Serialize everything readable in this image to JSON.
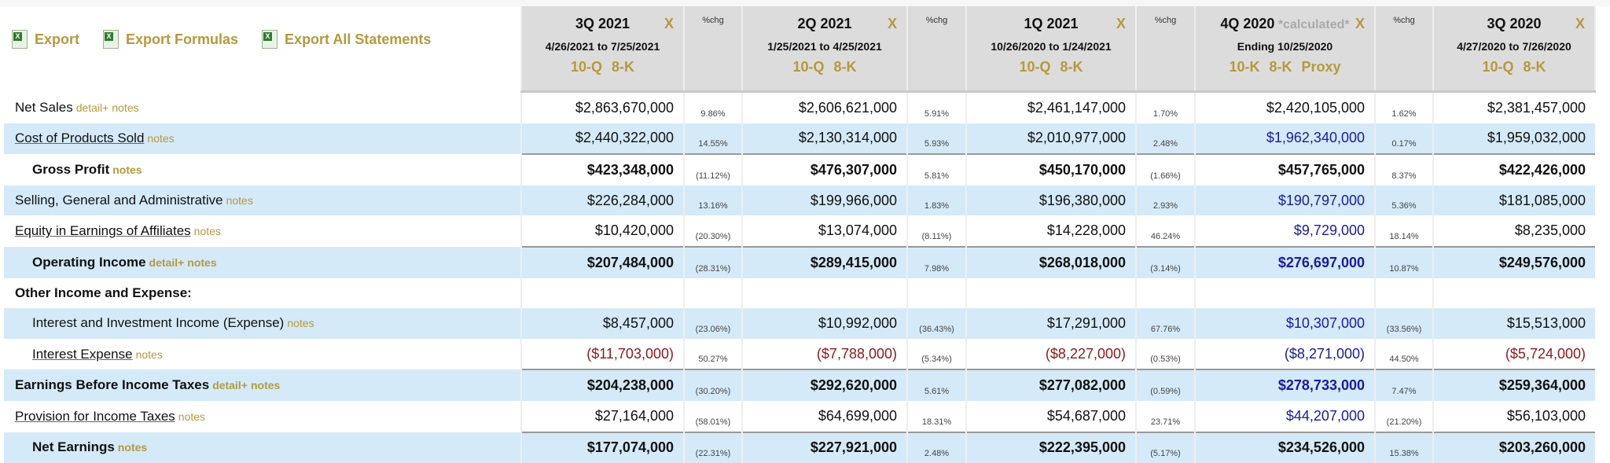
{
  "toolbar": {
    "export": "Export",
    "export_formulas": "Export Formulas",
    "export_all": "Export All Statements"
  },
  "pct_header": "%chg",
  "periods": [
    {
      "title": "3Q 2021",
      "calculated": "",
      "dates": "4/26/2021 to 7/25/2021",
      "links": [
        "10-Q",
        "8-K"
      ],
      "close": "X"
    },
    {
      "title": "2Q 2021",
      "calculated": "",
      "dates": "1/25/2021 to 4/25/2021",
      "links": [
        "10-Q",
        "8-K"
      ],
      "close": "X"
    },
    {
      "title": "1Q 2021",
      "calculated": "",
      "dates": "10/26/2020 to 1/24/2021",
      "links": [
        "10-Q",
        "8-K"
      ],
      "close": "X"
    },
    {
      "title": "4Q 2020",
      "calculated": "*calculated*",
      "dates": "Ending 10/25/2020",
      "links": [
        "10-K",
        "8-K",
        "Proxy"
      ],
      "close": "X"
    },
    {
      "title": "3Q 2020",
      "calculated": "",
      "dates": "4/27/2020 to 7/26/2020",
      "links": [
        "10-Q",
        "8-K"
      ],
      "close": "X"
    }
  ],
  "colors": {
    "gold": "#b59a3a",
    "stripe": "#d4eaf8",
    "calculated_blue": "#1a1aa0",
    "negative_red": "#8b1a1a"
  },
  "rows": [
    {
      "label": "Net Sales",
      "links": [
        "detail+",
        "notes"
      ],
      "bold": false,
      "indent": false,
      "underline": false,
      "stripe": false,
      "total": false,
      "calc_blue": false,
      "values": [
        "$2,863,670,000",
        "$2,606,621,000",
        "$2,461,147,000",
        "$2,420,105,000",
        "$2,381,457,000"
      ],
      "pcts": [
        "9.86%",
        "5.91%",
        "1.70%",
        "1.62%"
      ]
    },
    {
      "label": "Cost of Products Sold",
      "links": [
        "notes"
      ],
      "bold": false,
      "indent": false,
      "underline": true,
      "stripe": true,
      "total": false,
      "calc_blue": true,
      "values": [
        "$2,440,322,000",
        "$2,130,314,000",
        "$2,010,977,000",
        "$1,962,340,000",
        "$1,959,032,000"
      ],
      "pcts": [
        "14.55%",
        "5.93%",
        "2.48%",
        "0.17%"
      ]
    },
    {
      "label": "Gross Profit",
      "links": [
        "notes"
      ],
      "bold": true,
      "indent": true,
      "underline": false,
      "stripe": false,
      "total": true,
      "calc_blue": false,
      "values": [
        "$423,348,000",
        "$476,307,000",
        "$450,170,000",
        "$457,765,000",
        "$422,426,000"
      ],
      "pcts": [
        "(11.12%)",
        "5.81%",
        "(1.66%)",
        "8.37%"
      ]
    },
    {
      "label": "Selling, General and Administrative",
      "links": [
        "notes"
      ],
      "bold": false,
      "indent": false,
      "underline": false,
      "stripe": true,
      "total": false,
      "calc_blue": true,
      "values": [
        "$226,284,000",
        "$199,966,000",
        "$196,380,000",
        "$190,797,000",
        "$181,085,000"
      ],
      "pcts": [
        "13.16%",
        "1.83%",
        "2.93%",
        "5.36%"
      ]
    },
    {
      "label": "Equity in Earnings of Affiliates",
      "links": [
        "notes"
      ],
      "bold": false,
      "indent": false,
      "underline": true,
      "stripe": false,
      "total": false,
      "calc_blue": true,
      "values": [
        "$10,420,000",
        "$13,074,000",
        "$14,228,000",
        "$9,729,000",
        "$8,235,000"
      ],
      "pcts": [
        "(20.30%)",
        "(8.11%)",
        "46.24%",
        "18.14%"
      ]
    },
    {
      "label": "Operating Income",
      "links": [
        "detail+",
        "notes"
      ],
      "bold": true,
      "indent": true,
      "underline": false,
      "stripe": true,
      "total": true,
      "calc_blue": true,
      "values": [
        "$207,484,000",
        "$289,415,000",
        "$268,018,000",
        "$276,697,000",
        "$249,576,000"
      ],
      "pcts": [
        "(28.31%)",
        "7.98%",
        "(3.14%)",
        "10.87%"
      ]
    },
    {
      "label": "Other Income and Expense:",
      "links": [],
      "bold": true,
      "indent": false,
      "underline": false,
      "stripe": false,
      "total": false,
      "calc_blue": false,
      "values": [
        "",
        "",
        "",
        "",
        ""
      ],
      "pcts": [
        "",
        "",
        "",
        ""
      ]
    },
    {
      "label": "Interest and Investment Income (Expense)",
      "links": [
        "notes"
      ],
      "bold": false,
      "indent": true,
      "underline": false,
      "stripe": true,
      "total": false,
      "calc_blue": true,
      "values": [
        "$8,457,000",
        "$10,992,000",
        "$17,291,000",
        "$10,307,000",
        "$15,513,000"
      ],
      "pcts": [
        "(23.06%)",
        "(36.43%)",
        "67.76%",
        "(33.56%)"
      ]
    },
    {
      "label": "Interest Expense",
      "links": [
        "notes"
      ],
      "bold": false,
      "indent": true,
      "underline": true,
      "stripe": false,
      "total": false,
      "calc_blue": true,
      "values": [
        "($11,703,000)",
        "($7,788,000)",
        "($8,227,000)",
        "($8,271,000)",
        "($5,724,000)"
      ],
      "pcts": [
        "50.27%",
        "(5.34%)",
        "(0.53%)",
        "44.50%"
      ]
    },
    {
      "label": "Earnings Before Income Taxes",
      "links": [
        "detail+",
        "notes"
      ],
      "bold": true,
      "indent": false,
      "underline": false,
      "stripe": true,
      "total": true,
      "calc_blue": true,
      "values": [
        "$204,238,000",
        "$292,620,000",
        "$277,082,000",
        "$278,733,000",
        "$259,364,000"
      ],
      "pcts": [
        "(30.20%)",
        "5.61%",
        "(0.59%)",
        "7.47%"
      ]
    },
    {
      "label": "Provision for Income Taxes",
      "links": [
        "notes"
      ],
      "bold": false,
      "indent": false,
      "underline": true,
      "stripe": false,
      "total": false,
      "calc_blue": true,
      "values": [
        "$27,164,000",
        "$64,699,000",
        "$54,687,000",
        "$44,207,000",
        "$56,103,000"
      ],
      "pcts": [
        "(58.01%)",
        "18.31%",
        "23.71%",
        "(21.20%)"
      ]
    },
    {
      "label": "Net Earnings",
      "links": [
        "notes"
      ],
      "bold": true,
      "indent": true,
      "underline": false,
      "stripe": true,
      "total": true,
      "calc_blue": false,
      "values": [
        "$177,074,000",
        "$227,921,000",
        "$222,395,000",
        "$234,526,000",
        "$203,260,000"
      ],
      "pcts": [
        "(22.31%)",
        "2.48%",
        "(5.17%)",
        "15.38%"
      ]
    }
  ]
}
